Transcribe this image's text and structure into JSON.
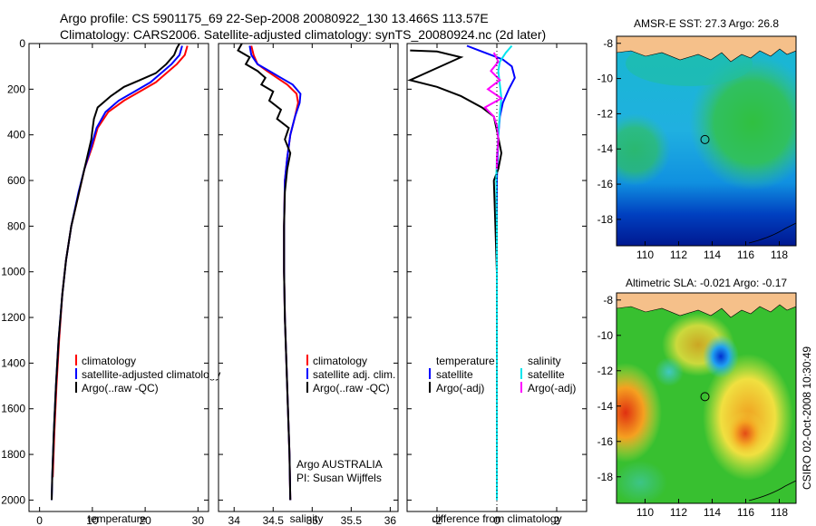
{
  "header": {
    "title_line1": "Argo profile: CS 5901175_69 22-Sep-2008 20080922_130 13.466S 113.57E",
    "title_line2": "Climatology: CARS2006. Satellite-adjusted climatology: synTS_20080924.nc (2d later)"
  },
  "colors": {
    "climatology": "#ff0000",
    "satellite": "#0000ff",
    "argo": "#000000",
    "sal_satellite": "#00e5ee",
    "sal_argo": "#ff00ff",
    "land": "#f5c08a"
  },
  "side_label": "CSIRO 02-Oct-2008 10:30:49",
  "chart_data": [
    {
      "type": "line",
      "id": "temperature",
      "xlabel": "temperature",
      "ylabel": "",
      "xlim": [
        -2,
        32
      ],
      "ylim": [
        2050,
        0
      ],
      "xticks": [
        "0",
        "10",
        "20",
        "30"
      ],
      "xtick_values": [
        0,
        10,
        20,
        30
      ],
      "yticks": [
        "0",
        "200",
        "400",
        "600",
        "800",
        "1000",
        "1200",
        "1400",
        "1600",
        "1800",
        "2000"
      ],
      "ytick_values": [
        0,
        200,
        400,
        600,
        800,
        1000,
        1200,
        1400,
        1600,
        1800,
        2000
      ],
      "legend": [
        "climatology",
        "satellite-adjusted climatology",
        "Argo(..raw -QC)"
      ],
      "series": [
        {
          "name": "climatology",
          "color": "#ff0000",
          "x": [
            28,
            27.5,
            26,
            24,
            22,
            19,
            16,
            13,
            11,
            10,
            8.5,
            7.5,
            6,
            5,
            4.3,
            3.7,
            3.2,
            2.8,
            2.5
          ],
          "y": [
            10,
            50,
            90,
            130,
            170,
            210,
            250,
            300,
            370,
            450,
            550,
            650,
            800,
            950,
            1100,
            1300,
            1500,
            1700,
            1900
          ]
        },
        {
          "name": "satellite-adjusted climatology",
          "color": "#0000ff",
          "x": [
            27,
            26.5,
            25,
            23,
            21,
            18,
            15,
            12.5,
            10.8,
            9.8,
            8.5,
            7.4,
            6,
            5,
            4.3,
            3.6,
            3.1,
            2.7,
            2.4,
            2.3
          ],
          "y": [
            10,
            50,
            90,
            130,
            170,
            210,
            250,
            300,
            370,
            450,
            550,
            650,
            800,
            950,
            1100,
            1300,
            1500,
            1700,
            1900,
            2000
          ]
        },
        {
          "name": "Argo(..raw -QC)",
          "color": "#000000",
          "x": [
            26.5,
            26,
            25.5,
            24,
            22,
            19,
            16,
            13.5,
            11,
            10.3,
            10,
            9.8,
            8.5,
            7.5,
            6,
            5,
            4.3,
            3.6,
            3.1,
            2.7,
            2.4,
            2.3
          ],
          "y": [
            0,
            20,
            50,
            90,
            130,
            160,
            190,
            230,
            280,
            330,
            380,
            420,
            550,
            650,
            800,
            950,
            1100,
            1300,
            1500,
            1700,
            1900,
            2000
          ]
        }
      ]
    },
    {
      "type": "line",
      "id": "salinity",
      "xlabel": "salinity",
      "xlim": [
        33.8,
        36.1
      ],
      "ylim": [
        2050,
        0
      ],
      "xticks": [
        "34",
        "34.5",
        "35",
        "35.5",
        "36"
      ],
      "xtick_values": [
        34,
        34.5,
        35,
        35.5,
        36
      ],
      "legend": [
        "climatology",
        "satellite adj. clim.",
        "Argo(..raw -QC)"
      ],
      "annotation_line1": "Argo AUSTRALIA",
      "annotation_line2": "PI: Susan Wijffels",
      "series": [
        {
          "name": "climatology",
          "color": "#ff0000",
          "x": [
            34.22,
            34.25,
            34.3,
            34.42,
            34.55,
            34.68,
            34.8,
            34.82,
            34.78,
            34.72,
            34.68,
            34.65,
            34.64,
            34.64,
            34.65,
            34.67,
            34.69,
            34.71,
            34.72
          ],
          "y": [
            10,
            50,
            90,
            120,
            150,
            180,
            220,
            260,
            320,
            400,
            500,
            600,
            800,
            1000,
            1200,
            1400,
            1600,
            1800,
            2000
          ]
        },
        {
          "name": "satellite adj. clim.",
          "color": "#0000ff",
          "x": [
            34.2,
            34.22,
            34.3,
            34.45,
            34.6,
            34.75,
            34.85,
            34.84,
            34.78,
            34.72,
            34.68,
            34.65,
            34.64,
            34.64,
            34.65,
            34.67,
            34.69,
            34.71,
            34.72
          ],
          "y": [
            10,
            50,
            90,
            120,
            150,
            180,
            220,
            260,
            320,
            400,
            500,
            600,
            800,
            1000,
            1200,
            1400,
            1600,
            1800,
            2000
          ]
        },
        {
          "name": "Argo(..raw -QC)",
          "color": "#000000",
          "x": [
            34.1,
            34.05,
            34.2,
            34.15,
            34.3,
            34.4,
            34.35,
            34.5,
            34.45,
            34.6,
            34.55,
            34.7,
            34.65,
            34.72,
            34.68,
            34.65,
            34.64,
            34.64,
            34.65,
            34.67,
            34.69,
            34.71,
            34.72
          ],
          "y": [
            0,
            30,
            60,
            90,
            120,
            150,
            180,
            210,
            250,
            290,
            330,
            370,
            420,
            480,
            550,
            650,
            800,
            1000,
            1200,
            1400,
            1600,
            1800,
            2000
          ]
        }
      ]
    },
    {
      "type": "line",
      "id": "difference",
      "xlabel": "difference from climatology",
      "xlim": [
        -3,
        3
      ],
      "ylim": [
        2050,
        0
      ],
      "xticks": [
        "-2",
        "0",
        "2"
      ],
      "xtick_values": [
        -2,
        0,
        2
      ],
      "legend_temperature_title": "temperature",
      "legend_salinity_title": "salinity",
      "legend_temperature": [
        "satellite",
        "Argo(-adj)"
      ],
      "legend_salinity": [
        "satellite",
        "Argo(-adj)"
      ],
      "series": [
        {
          "name": "temperature satellite",
          "color": "#0000ff",
          "x": [
            -1,
            -0.6,
            -0.2,
            0.2,
            0.5,
            0.6,
            0.4,
            0.2,
            0.1,
            0.05,
            0.02,
            0.0,
            0.0,
            0.0,
            0.0,
            0.0,
            0.0
          ],
          "y": [
            10,
            30,
            50,
            70,
            100,
            150,
            200,
            260,
            320,
            400,
            500,
            600,
            800,
            1000,
            1400,
            1800,
            2000
          ]
        },
        {
          "name": "temperature Argo(-adj)",
          "color": "#000000",
          "x": [
            -2.9,
            -2.0,
            -1.2,
            -2.9,
            -2.0,
            -1.2,
            -0.5,
            -0.1,
            0.0,
            0.15,
            0.05,
            -0.1,
            -0.05,
            0.0,
            0.0,
            0.0,
            0.0
          ],
          "y": [
            30,
            35,
            60,
            160,
            190,
            230,
            280,
            320,
            380,
            480,
            550,
            600,
            800,
            1000,
            1400,
            1800,
            2000
          ]
        },
        {
          "name": "salinity satellite",
          "color": "#00e5ee",
          "x": [
            0.5,
            0.3,
            0.1,
            0.05,
            0.1,
            0.15,
            0.1,
            0.05,
            0.0,
            -0.02,
            0.0,
            0.0,
            0.0
          ],
          "y": [
            10,
            40,
            80,
            120,
            180,
            240,
            300,
            400,
            500,
            600,
            800,
            1200,
            2000
          ]
        },
        {
          "name": "salinity Argo(-adj)",
          "color": "#ff00ff",
          "x": [
            -0.1,
            0.05,
            -0.2,
            0.1,
            -0.3,
            0.15,
            -0.4,
            -0.1,
            0.0,
            0.05,
            0.0,
            0.0
          ],
          "y": [
            40,
            80,
            120,
            160,
            200,
            240,
            280,
            320,
            360,
            420,
            500,
            550
          ]
        }
      ]
    },
    {
      "type": "heatmap",
      "id": "sst_map",
      "title": "AMSR-E SST: 27.3 Argo: 26.8",
      "xlim": [
        108.3,
        119
      ],
      "ylim": [
        -19.5,
        -7.6
      ],
      "xticks": [
        "110",
        "112",
        "114",
        "116",
        "118"
      ],
      "xtick_values": [
        110,
        112,
        114,
        116,
        118
      ],
      "yticks": [
        "-8",
        "-10",
        "-12",
        "-14",
        "-16",
        "-18"
      ],
      "ytick_values": [
        -8,
        -10,
        -12,
        -14,
        -16,
        -18
      ],
      "marker": {
        "lon": 113.57,
        "lat": -13.466
      }
    },
    {
      "type": "heatmap",
      "id": "sla_map",
      "title": "Altimetric SLA: -0.021 Argo: -0.17",
      "xlim": [
        108.3,
        119
      ],
      "ylim": [
        -19.5,
        -7.6
      ],
      "xticks": [
        "110",
        "112",
        "114",
        "116",
        "118"
      ],
      "xtick_values": [
        110,
        112,
        114,
        116,
        118
      ],
      "yticks": [
        "-8",
        "-10",
        "-12",
        "-14",
        "-16",
        "-18"
      ],
      "ytick_values": [
        -8,
        -10,
        -12,
        -14,
        -16,
        -18
      ],
      "marker": {
        "lon": 113.57,
        "lat": -13.466
      }
    }
  ]
}
